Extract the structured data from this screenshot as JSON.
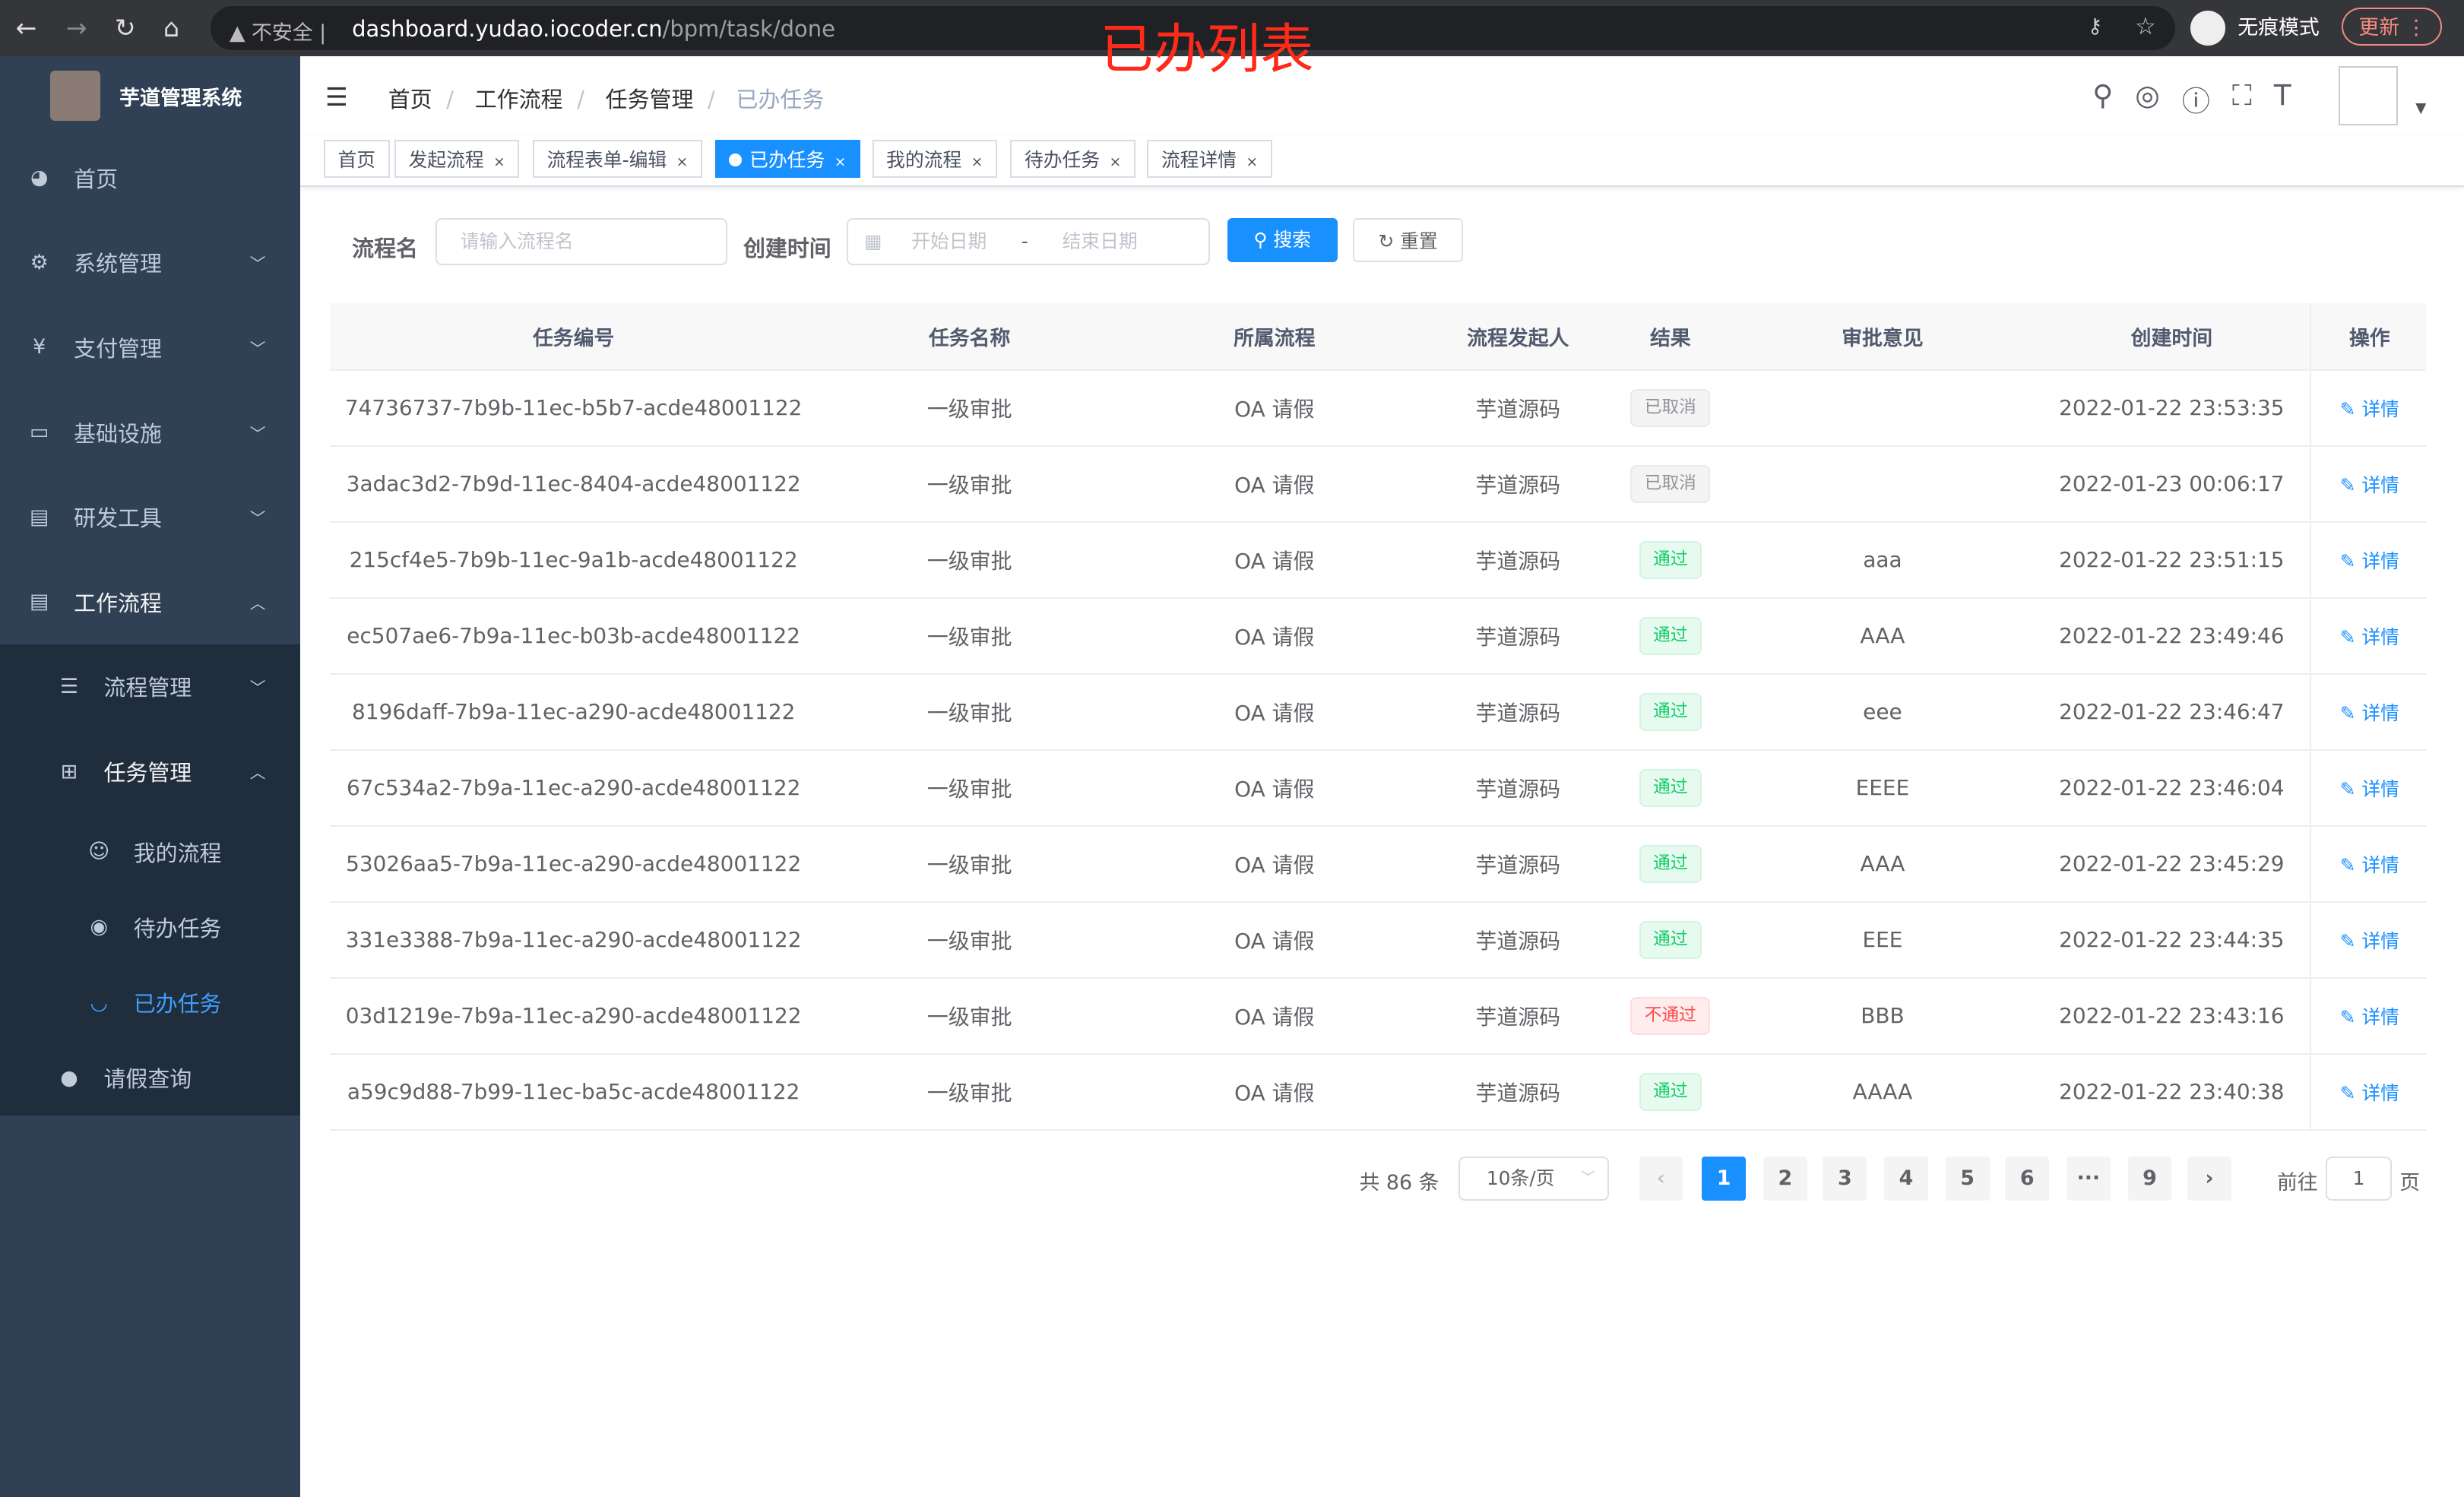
{
  "browser": {
    "url_warning": "不安全",
    "url_host": "dashboard.yudao.iocoder.cn",
    "url_path": "/bpm/task/done",
    "incognito": "无痕模式",
    "update": "更新"
  },
  "annotation": "已办列表",
  "sidebar": {
    "title": "芋道管理系统",
    "items": [
      {
        "label": "首页",
        "icon": "dashboard-icon"
      },
      {
        "label": "系统管理",
        "icon": "gear-icon"
      },
      {
        "label": "支付管理",
        "icon": "yen-icon"
      },
      {
        "label": "基础设施",
        "icon": "monitor-icon"
      },
      {
        "label": "研发工具",
        "icon": "toolbox-icon"
      },
      {
        "label": "工作流程",
        "icon": "toolbox-icon"
      },
      {
        "label": "流程管理",
        "icon": "list-icon"
      },
      {
        "label": "任务管理",
        "icon": "tree-icon"
      },
      {
        "label": "我的流程",
        "icon": "people-icon"
      },
      {
        "label": "待办任务",
        "icon": "eye-icon"
      },
      {
        "label": "已办任务",
        "icon": "eye-closed-icon"
      },
      {
        "label": "请假查询",
        "icon": "user-icon"
      }
    ]
  },
  "breadcrumb": [
    "首页",
    "工作流程",
    "任务管理",
    "已办任务"
  ],
  "tags": [
    "首页",
    "发起流程",
    "流程表单-编辑",
    "已办任务",
    "我的流程",
    "待办任务",
    "流程详情"
  ],
  "filter": {
    "name_label": "流程名",
    "name_placeholder": "请输入流程名",
    "time_label": "创建时间",
    "start_placeholder": "开始日期",
    "range_sep": "-",
    "end_placeholder": "结束日期",
    "search": "搜索",
    "reset": "重置"
  },
  "table": {
    "headers": [
      "任务编号",
      "任务名称",
      "所属流程",
      "流程发起人",
      "结果",
      "审批意见",
      "创建时间",
      "操作"
    ],
    "rows": [
      {
        "id": "74736737-7b9b-11ec-b5b7-acde48001122",
        "name": "一级审批",
        "process": "OA 请假",
        "starter": "芋道源码",
        "result": "已取消",
        "status": "cancel",
        "comment": "",
        "time": "2022-01-22 23:53:35",
        "action": "详情"
      },
      {
        "id": "3adac3d2-7b9d-11ec-8404-acde48001122",
        "name": "一级审批",
        "process": "OA 请假",
        "starter": "芋道源码",
        "result": "已取消",
        "status": "cancel",
        "comment": "",
        "time": "2022-01-23 00:06:17",
        "action": "详情"
      },
      {
        "id": "215cf4e5-7b9b-11ec-9a1b-acde48001122",
        "name": "一级审批",
        "process": "OA 请假",
        "starter": "芋道源码",
        "result": "通过",
        "status": "ok",
        "comment": "aaa",
        "time": "2022-01-22 23:51:15",
        "action": "详情"
      },
      {
        "id": "ec507ae6-7b9a-11ec-b03b-acde48001122",
        "name": "一级审批",
        "process": "OA 请假",
        "starter": "芋道源码",
        "result": "通过",
        "status": "ok",
        "comment": "AAA",
        "time": "2022-01-22 23:49:46",
        "action": "详情"
      },
      {
        "id": "8196daff-7b9a-11ec-a290-acde48001122",
        "name": "一级审批",
        "process": "OA 请假",
        "starter": "芋道源码",
        "result": "通过",
        "status": "ok",
        "comment": "eee",
        "time": "2022-01-22 23:46:47",
        "action": "详情"
      },
      {
        "id": "67c534a2-7b9a-11ec-a290-acde48001122",
        "name": "一级审批",
        "process": "OA 请假",
        "starter": "芋道源码",
        "result": "通过",
        "status": "ok",
        "comment": "EEEE",
        "time": "2022-01-22 23:46:04",
        "action": "详情"
      },
      {
        "id": "53026aa5-7b9a-11ec-a290-acde48001122",
        "name": "一级审批",
        "process": "OA 请假",
        "starter": "芋道源码",
        "result": "通过",
        "status": "ok",
        "comment": "AAA",
        "time": "2022-01-22 23:45:29",
        "action": "详情"
      },
      {
        "id": "331e3388-7b9a-11ec-a290-acde48001122",
        "name": "一级审批",
        "process": "OA 请假",
        "starter": "芋道源码",
        "result": "通过",
        "status": "ok",
        "comment": "EEE",
        "time": "2022-01-22 23:44:35",
        "action": "详情"
      },
      {
        "id": "03d1219e-7b9a-11ec-a290-acde48001122",
        "name": "一级审批",
        "process": "OA 请假",
        "starter": "芋道源码",
        "result": "不通过",
        "status": "no",
        "comment": "BBB",
        "time": "2022-01-22 23:43:16",
        "action": "详情"
      },
      {
        "id": "a59c9d88-7b99-11ec-ba5c-acde48001122",
        "name": "一级审批",
        "process": "OA 请假",
        "starter": "芋道源码",
        "result": "通过",
        "status": "ok",
        "comment": "AAAA",
        "time": "2022-01-22 23:40:38",
        "action": "详情"
      }
    ]
  },
  "pagination": {
    "total": "共 86 条",
    "page_size": "10条/页",
    "pages": [
      "1",
      "2",
      "3",
      "4",
      "5",
      "6",
      "···",
      "9"
    ],
    "current": "1",
    "goto_label": "前往",
    "goto_value": "1",
    "goto_suffix": "页"
  }
}
